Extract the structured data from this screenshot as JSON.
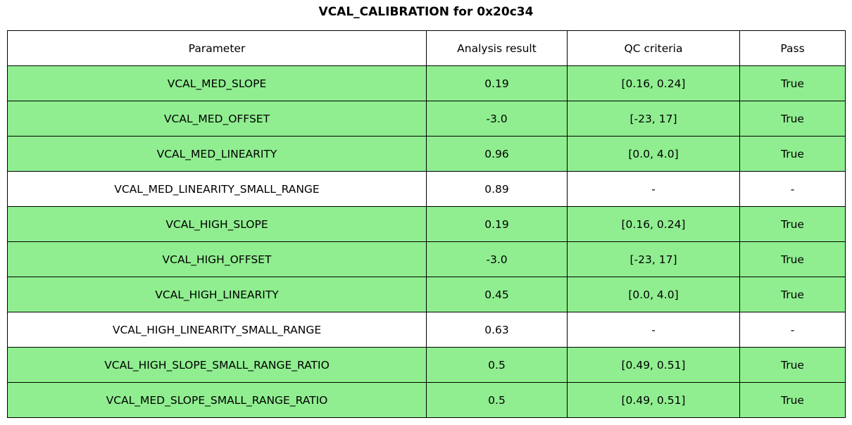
{
  "title": "VCAL_CALIBRATION for 0x20c34",
  "colors": {
    "pass_row": "#90EE90",
    "neutral_row": "#ffffff",
    "border": "#000000",
    "text": "#000000"
  },
  "chart_data": {
    "type": "table",
    "title": "VCAL_CALIBRATION for 0x20c34",
    "columns": [
      "Parameter",
      "Analysis result",
      "QC criteria",
      "Pass"
    ],
    "rows": [
      {
        "parameter": "VCAL_MED_SLOPE",
        "result": "0.19",
        "qc": "[0.16, 0.24]",
        "pass": "True",
        "highlight": true
      },
      {
        "parameter": "VCAL_MED_OFFSET",
        "result": "-3.0",
        "qc": "[-23, 17]",
        "pass": "True",
        "highlight": true
      },
      {
        "parameter": "VCAL_MED_LINEARITY",
        "result": "0.96",
        "qc": "[0.0, 4.0]",
        "pass": "True",
        "highlight": true
      },
      {
        "parameter": "VCAL_MED_LINEARITY_SMALL_RANGE",
        "result": "0.89",
        "qc": "-",
        "pass": "-",
        "highlight": false
      },
      {
        "parameter": "VCAL_HIGH_SLOPE",
        "result": "0.19",
        "qc": "[0.16, 0.24]",
        "pass": "True",
        "highlight": true
      },
      {
        "parameter": "VCAL_HIGH_OFFSET",
        "result": "-3.0",
        "qc": "[-23, 17]",
        "pass": "True",
        "highlight": true
      },
      {
        "parameter": "VCAL_HIGH_LINEARITY",
        "result": "0.45",
        "qc": "[0.0, 4.0]",
        "pass": "True",
        "highlight": true
      },
      {
        "parameter": "VCAL_HIGH_LINEARITY_SMALL_RANGE",
        "result": "0.63",
        "qc": "-",
        "pass": "-",
        "highlight": false
      },
      {
        "parameter": "VCAL_HIGH_SLOPE_SMALL_RANGE_RATIO",
        "result": "0.5",
        "qc": "[0.49, 0.51]",
        "pass": "True",
        "highlight": true
      },
      {
        "parameter": "VCAL_MED_SLOPE_SMALL_RANGE_RATIO",
        "result": "0.5",
        "qc": "[0.49, 0.51]",
        "pass": "True",
        "highlight": true
      }
    ]
  }
}
